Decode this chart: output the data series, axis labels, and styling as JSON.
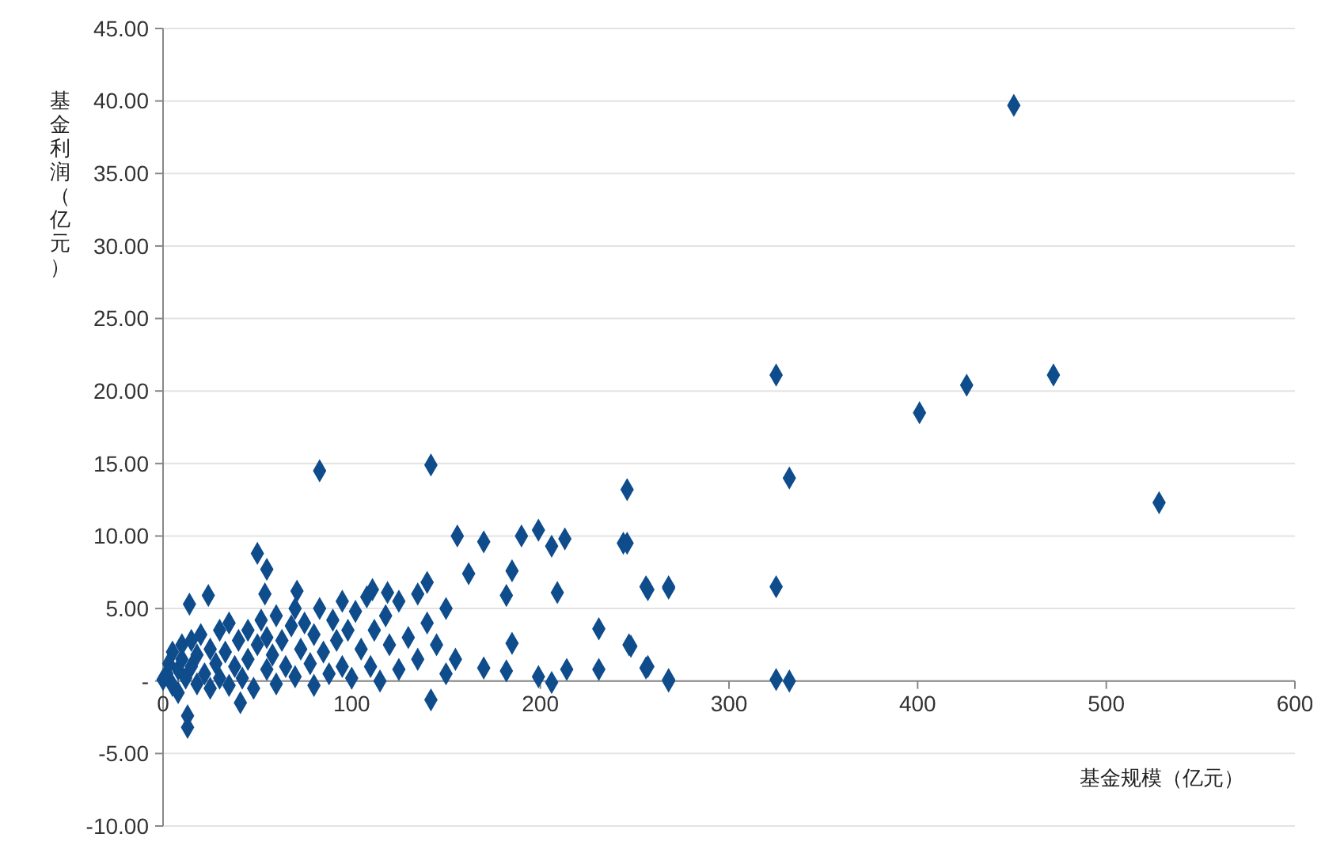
{
  "chart_data": {
    "type": "scatter",
    "xlabel": "基金规模（亿元）",
    "ylabel": "基金利润（亿元）",
    "xlim": [
      0,
      600
    ],
    "xticks": [
      0,
      100,
      200,
      300,
      400,
      500,
      600
    ],
    "ylim": [
      -10,
      45
    ],
    "yticks": [
      {
        "value": -10,
        "label": "-10.00"
      },
      {
        "value": -5,
        "label": "-5.00"
      },
      {
        "value": 0,
        "label": "-"
      },
      {
        "value": 5,
        "label": "5.00"
      },
      {
        "value": 10,
        "label": "10.00"
      },
      {
        "value": 15,
        "label": "15.00"
      },
      {
        "value": 20,
        "label": "20.00"
      },
      {
        "value": 25,
        "label": "25.00"
      },
      {
        "value": 30,
        "label": "30.00"
      },
      {
        "value": 35,
        "label": "35.00"
      },
      {
        "value": 40,
        "label": "40.00"
      },
      {
        "value": 45,
        "label": "45.00"
      }
    ],
    "grid": "y",
    "marker": "diamond",
    "series": [
      {
        "color": "#0f4c8c",
        "x": [
          451,
          325,
          472,
          426,
          401,
          332,
          528,
          83,
          142,
          246,
          325,
          325,
          332,
          268,
          256,
          268,
          246,
          248,
          256,
          156,
          170,
          190,
          199,
          206,
          213,
          244,
          185,
          50,
          55,
          54,
          71,
          182,
          209,
          257,
          268,
          231,
          185,
          247,
          170,
          182,
          199,
          214,
          231,
          257,
          268,
          206,
          162,
          14,
          24,
          41,
          13,
          13,
          142,
          140,
          111,
          119,
          0,
          2,
          3,
          5,
          5,
          8,
          8,
          10,
          10,
          12,
          15,
          15,
          18,
          18,
          20,
          22,
          25,
          25,
          28,
          30,
          30,
          33,
          35,
          35,
          38,
          40,
          42,
          45,
          45,
          48,
          50,
          52,
          55,
          55,
          58,
          60,
          60,
          63,
          65,
          68,
          70,
          70,
          73,
          75,
          78,
          80,
          80,
          83,
          85,
          88,
          90,
          92,
          95,
          95,
          98,
          100,
          102,
          105,
          108,
          110,
          112,
          115,
          118,
          120,
          125,
          125,
          130,
          135,
          135,
          140,
          145,
          150,
          150,
          155
        ],
        "values": [
          39.7,
          21.1,
          21.1,
          20.4,
          18.5,
          14.0,
          12.3,
          14.5,
          14.9,
          13.2,
          6.5,
          0.1,
          0,
          6.5,
          6.5,
          0.1,
          9.5,
          2.4,
          0.9,
          10.0,
          9.6,
          10.0,
          10.4,
          9.3,
          9.8,
          9.5,
          7.6,
          8.8,
          7.7,
          6.0,
          6.2,
          5.9,
          6.1,
          6.3,
          6.4,
          3.6,
          2.6,
          2.5,
          0.9,
          0.7,
          0.3,
          0.8,
          0.8,
          1.0,
          0.0,
          -0.1,
          7.4,
          5.3,
          5.9,
          -1.5,
          -2.4,
          -3.2,
          -1.3,
          6.8,
          6.3,
          6.1,
          0.1,
          0.5,
          1.2,
          -0.3,
          2.0,
          0.8,
          -0.8,
          1.5,
          2.5,
          0.2,
          1.0,
          2.8,
          -0.2,
          1.8,
          3.2,
          0.5,
          2.2,
          -0.5,
          1.2,
          3.5,
          0.2,
          2.0,
          -0.3,
          4.0,
          1.0,
          2.8,
          0.2,
          3.5,
          1.5,
          -0.5,
          2.5,
          4.2,
          0.8,
          3.0,
          1.8,
          4.5,
          -0.2,
          2.8,
          1.0,
          3.8,
          0.3,
          5.0,
          2.2,
          4.0,
          1.2,
          3.2,
          -0.3,
          5.0,
          2.0,
          0.5,
          4.2,
          2.8,
          5.5,
          1.0,
          3.5,
          0.2,
          4.8,
          2.2,
          5.8,
          1.0,
          3.5,
          0.0,
          4.5,
          2.5,
          5.5,
          0.8,
          3.0,
          1.5,
          6.0,
          4.0,
          2.5,
          0.5,
          5.0,
          1.5
        ]
      }
    ]
  }
}
